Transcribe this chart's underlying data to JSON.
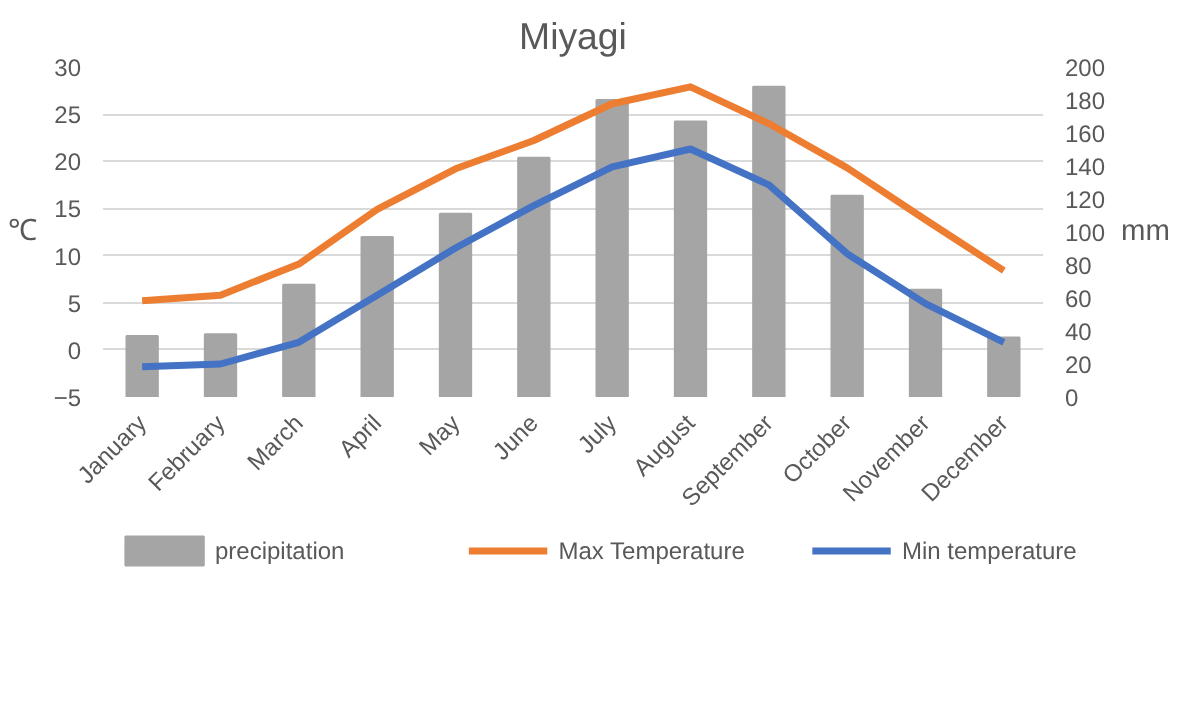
{
  "chart_data": {
    "type": "bar",
    "title": "Miyagi",
    "ylabel": "℃",
    "y2label": "mm",
    "categories": [
      "January",
      "February",
      "March",
      "April",
      "May",
      "June",
      "July",
      "August",
      "September",
      "October",
      "November",
      "December"
    ],
    "series": [
      {
        "name": "precipitation",
        "axis": "y2",
        "color": "#a5a5a5",
        "values": [
          37,
          38,
          68,
          97,
          111,
          145,
          180,
          167,
          188,
          122,
          65,
          36
        ]
      },
      {
        "name": "Max Temperature",
        "type": "line",
        "color": "#ed7d31",
        "values": [
          5.2,
          5.8,
          9.1,
          14.9,
          19.2,
          22.2,
          26.1,
          27.9,
          24.0,
          19.3,
          13.8,
          8.4
        ]
      },
      {
        "name": "Min temperature",
        "type": "line",
        "color": "#4472c4",
        "values": [
          -1.8,
          -1.5,
          0.8,
          5.8,
          10.8,
          15.3,
          19.4,
          21.3,
          17.5,
          10.2,
          4.9,
          0.8
        ]
      }
    ],
    "ylim": [
      -5,
      30
    ],
    "yticks": [
      -5,
      0,
      5,
      10,
      15,
      20,
      25,
      30
    ],
    "y2lim": [
      0,
      200
    ],
    "y2ticks": [
      0,
      20,
      40,
      60,
      80,
      100,
      120,
      140,
      160,
      180,
      200
    ],
    "grid": "y",
    "legend": "bottom",
    "marker": "none",
    "line_style": "solid"
  }
}
